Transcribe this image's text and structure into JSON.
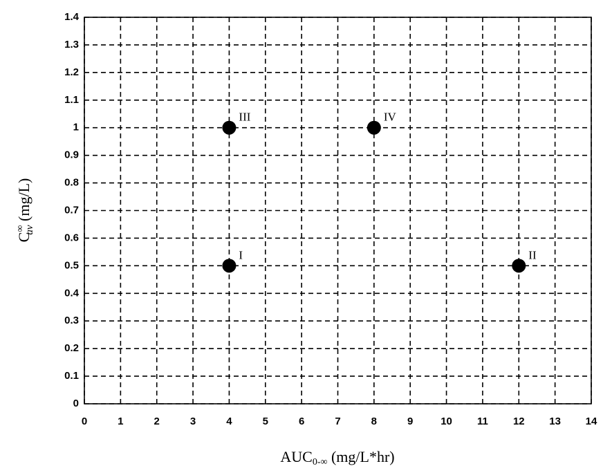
{
  "chart_data": {
    "type": "scatter",
    "x_label": {
      "main": "AUC",
      "sub": "0-∞",
      "rest": " (mg/L*hr)"
    },
    "y_label": {
      "main": "C",
      "sup": "∞",
      "sub": "av",
      "rest": " (mg/L)"
    },
    "x": [
      4,
      12,
      4,
      8
    ],
    "values": [
      0.5,
      0.5,
      1,
      1
    ],
    "point_labels": [
      "I",
      "II",
      "III",
      "IV"
    ],
    "color": "#000000",
    "xlim": [
      0,
      14
    ],
    "xticks": [
      0,
      1,
      2,
      3,
      4,
      5,
      6,
      7,
      8,
      9,
      10,
      11,
      12,
      13,
      14
    ],
    "ylim": [
      0,
      1.4
    ],
    "yticks": [
      0,
      0.1,
      0.2,
      0.3,
      0.4,
      0.5,
      0.6,
      0.7,
      0.8,
      0.9,
      1,
      1.1,
      1.2,
      1.3,
      1.4
    ],
    "grid": true
  }
}
